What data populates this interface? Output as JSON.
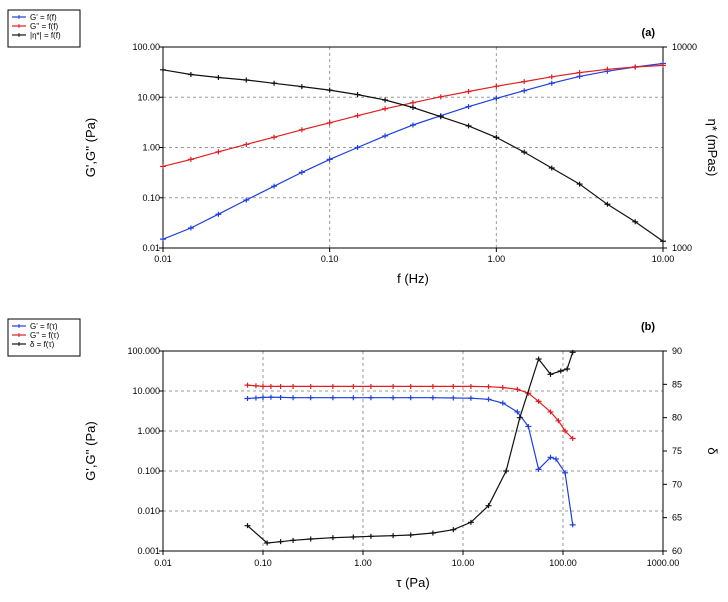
{
  "chart_data": [
    {
      "type": "line",
      "panel_label": "(a)",
      "xlabel": "f (Hz)",
      "ylabel": "G',G'' (Pa)",
      "y2label": "η* (mPas)",
      "x_scale": "log",
      "y_scale": "log",
      "y2_scale": "log",
      "xlim": [
        0.01,
        10
      ],
      "ylim": [
        0.01,
        100
      ],
      "y2lim": [
        1000,
        10000
      ],
      "x_ticks": [
        "0.01",
        "0.10",
        "1.00",
        "10.00"
      ],
      "y_ticks": [
        "0.01",
        "0.10",
        "1.00",
        "10.00",
        "100.00"
      ],
      "y2_ticks": [
        "1000",
        "10000"
      ],
      "grid": true,
      "legend_position": "top-left-outside",
      "series": [
        {
          "name": "G' = f(f)",
          "color": "#1f3fe0",
          "axis": "left",
          "x": [
            0.01,
            0.0147,
            0.0215,
            0.0316,
            0.0464,
            0.0681,
            0.1,
            0.147,
            0.215,
            0.316,
            0.464,
            0.681,
            1.0,
            1.47,
            2.15,
            3.16,
            4.64,
            6.81,
            10.0
          ],
          "y": [
            0.015,
            0.025,
            0.047,
            0.09,
            0.17,
            0.32,
            0.58,
            1.0,
            1.7,
            2.8,
            4.3,
            6.5,
            9.5,
            13.5,
            19.0,
            26.0,
            33.0,
            40.0,
            47.0
          ]
        },
        {
          "name": "G'' = f(f)",
          "color": "#e02020",
          "axis": "left",
          "x": [
            0.01,
            0.0147,
            0.0215,
            0.0316,
            0.0464,
            0.0681,
            0.1,
            0.147,
            0.215,
            0.316,
            0.464,
            0.681,
            1.0,
            1.47,
            2.15,
            3.16,
            4.64,
            6.81,
            10.0
          ],
          "y": [
            0.42,
            0.58,
            0.82,
            1.15,
            1.6,
            2.25,
            3.1,
            4.3,
            5.9,
            7.8,
            10.2,
            13.0,
            16.5,
            20.5,
            25.5,
            31.0,
            36.0,
            40.0,
            43.0
          ]
        },
        {
          "name": "|η*| = f(f)",
          "color": "#111111",
          "axis": "right",
          "x": [
            0.01,
            0.0147,
            0.0215,
            0.0316,
            0.0464,
            0.0681,
            0.1,
            0.147,
            0.215,
            0.316,
            0.464,
            0.681,
            1.0,
            1.47,
            2.15,
            3.16,
            4.64,
            6.81,
            10.0
          ],
          "y": [
            7700,
            7300,
            7050,
            6850,
            6600,
            6350,
            6100,
            5800,
            5450,
            5000,
            4500,
            4050,
            3550,
            3000,
            2500,
            2080,
            1650,
            1350,
            1080
          ]
        }
      ]
    },
    {
      "type": "line",
      "panel_label": "(b)",
      "xlabel": "τ (Pa)",
      "ylabel": "G',G'' (Pa)",
      "y2label": "δ",
      "x_scale": "log",
      "y_scale": "log",
      "y2_scale": "linear",
      "xlim": [
        0.01,
        1000
      ],
      "ylim": [
        0.001,
        100
      ],
      "y2lim": [
        60,
        90
      ],
      "x_ticks": [
        "0.01",
        "0.10",
        "1.00",
        "10.00",
        "100.00",
        "1000.00"
      ],
      "y_ticks": [
        "0.001",
        "0.010",
        "0.100",
        "1.000",
        "10.000",
        "100.000"
      ],
      "y2_ticks": [
        "60",
        "65",
        "70",
        "75",
        "80",
        "85",
        "90"
      ],
      "grid": true,
      "legend_position": "top-left-outside",
      "series": [
        {
          "name": "G' = f(τ)",
          "color": "#1f3fe0",
          "axis": "left",
          "x": [
            0.07,
            0.085,
            0.1,
            0.12,
            0.15,
            0.2,
            0.3,
            0.5,
            0.8,
            1.2,
            2,
            3,
            5,
            8,
            12,
            18,
            25,
            35,
            45,
            57,
            75,
            85,
            105,
            125
          ],
          "y": [
            6.5,
            6.7,
            6.9,
            7.0,
            6.9,
            6.8,
            6.8,
            6.8,
            6.8,
            6.8,
            6.8,
            6.8,
            6.8,
            6.7,
            6.6,
            6.2,
            5.0,
            3.0,
            1.3,
            0.11,
            0.22,
            0.2,
            0.09,
            0.0045
          ]
        },
        {
          "name": "G'' = f(τ)",
          "color": "#e02020",
          "axis": "left",
          "x": [
            0.07,
            0.085,
            0.1,
            0.12,
            0.15,
            0.2,
            0.3,
            0.5,
            0.8,
            1.2,
            2,
            3,
            5,
            8,
            12,
            18,
            25,
            35,
            45,
            57,
            75,
            90,
            105,
            125
          ],
          "y": [
            14.0,
            13.5,
            13.0,
            13.0,
            13.0,
            13.0,
            13.0,
            13.0,
            13.0,
            13.0,
            13.0,
            13.0,
            13.0,
            13.0,
            13.0,
            12.8,
            12.2,
            11.0,
            8.8,
            5.5,
            3.0,
            1.8,
            1.0,
            0.65
          ]
        },
        {
          "name": "δ = f(τ)",
          "color": "#111111",
          "axis": "right",
          "x": [
            0.07,
            0.11,
            0.15,
            0.2,
            0.3,
            0.5,
            0.8,
            1.2,
            2,
            3,
            5,
            8,
            12,
            18,
            27,
            37,
            57,
            75,
            95,
            110,
            125
          ],
          "y": [
            63.8,
            61.2,
            61.4,
            61.6,
            61.8,
            62.0,
            62.1,
            62.2,
            62.3,
            62.4,
            62.7,
            63.2,
            64.3,
            66.8,
            72.0,
            80.0,
            88.8,
            86.5,
            87.0,
            87.3,
            89.8
          ]
        }
      ]
    }
  ]
}
